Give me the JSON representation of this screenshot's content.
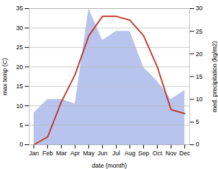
{
  "chart_data": {
    "type": "line",
    "xlabel": "date (month)",
    "ylabel": "max temp (C)",
    "y2label": "med. precipitation (kg/m2)",
    "categories": [
      "Jan",
      "Feb",
      "Mar",
      "Apr",
      "May",
      "Jun",
      "Jul",
      "Aug",
      "Sep",
      "Oct",
      "Nov",
      "Dec"
    ],
    "series": [
      {
        "type": "area",
        "axis": "y2",
        "color": "#b8c4ee",
        "values": [
          7,
          10,
          10,
          9,
          30,
          23,
          25,
          25,
          17,
          14,
          10,
          12
        ]
      },
      {
        "type": "line",
        "color": "#c0392b",
        "values": [
          0,
          2,
          11,
          18,
          28,
          33,
          33,
          32,
          28,
          20,
          9,
          8
        ]
      }
    ],
    "ylim": [
      0,
      35
    ],
    "yticks": [
      0,
      5,
      10,
      15,
      20,
      25,
      30,
      35
    ],
    "y2lim": [
      0,
      30
    ],
    "y2ticks": [
      0,
      5,
      10,
      15,
      20,
      25,
      30
    ],
    "grid": true
  }
}
